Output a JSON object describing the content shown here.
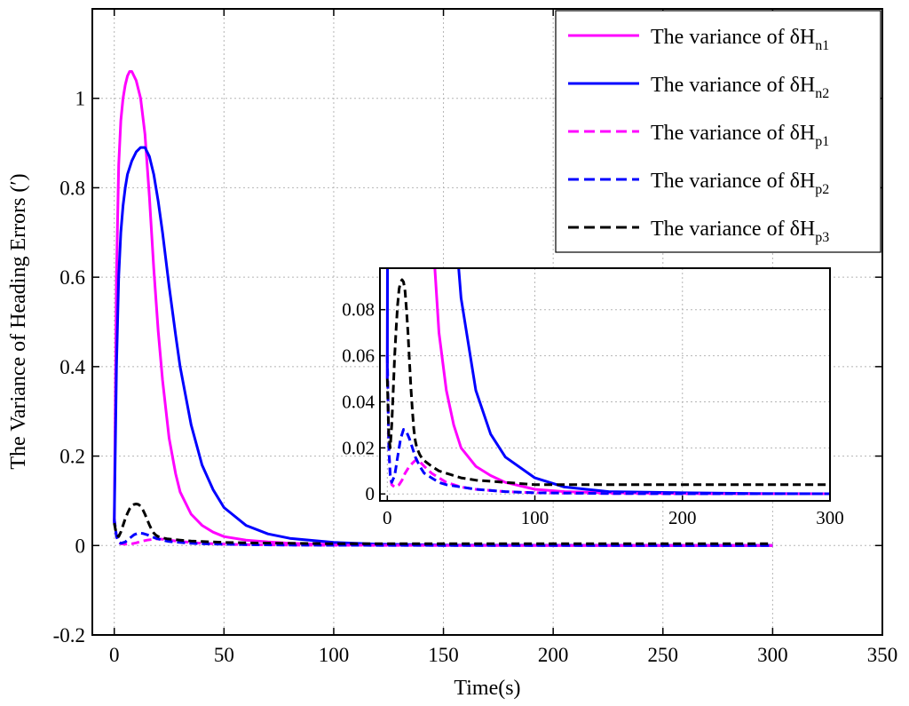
{
  "chart_data": {
    "type": "line",
    "xlabel": "Time(s)",
    "ylabel": "The Variance of Heading Errors (′)",
    "xlim": [
      -10,
      350
    ],
    "ylim": [
      -0.2,
      1.2
    ],
    "xticks": [
      "0",
      "50",
      "100",
      "150",
      "200",
      "250",
      "300",
      "350"
    ],
    "yticks": [
      "-0.2",
      "0",
      "0.2",
      "0.4",
      "0.6",
      "0.8",
      "1"
    ],
    "grid": true,
    "legend_position": "top-right",
    "series": [
      {
        "name": "The variance of δH",
        "subscript": "n1",
        "color": "#ff00ff",
        "dash": "solid",
        "x": [
          0,
          1,
          2,
          3,
          4,
          5,
          6,
          7,
          8,
          10,
          12,
          14,
          16,
          18,
          20,
          22,
          25,
          28,
          30,
          35,
          40,
          45,
          50,
          60,
          70,
          80,
          100,
          120,
          150,
          200,
          250,
          300
        ],
        "y": [
          0.05,
          0.6,
          0.85,
          0.95,
          1.0,
          1.03,
          1.05,
          1.06,
          1.06,
          1.04,
          1.0,
          0.92,
          0.78,
          0.62,
          0.48,
          0.37,
          0.24,
          0.16,
          0.12,
          0.07,
          0.045,
          0.03,
          0.02,
          0.012,
          0.008,
          0.005,
          0.002,
          0.001,
          0.0005,
          0.0002,
          0.0001,
          0.0001
        ]
      },
      {
        "name": "The variance of δH",
        "subscript": "n2",
        "color": "#0000ff",
        "dash": "solid",
        "x": [
          0,
          1,
          2,
          3,
          4,
          5,
          6,
          8,
          10,
          12,
          14,
          16,
          18,
          20,
          22,
          25,
          28,
          30,
          35,
          40,
          45,
          50,
          60,
          70,
          80,
          100,
          120,
          150,
          200,
          250,
          300
        ],
        "y": [
          0.05,
          0.4,
          0.6,
          0.7,
          0.76,
          0.8,
          0.83,
          0.86,
          0.88,
          0.89,
          0.89,
          0.87,
          0.83,
          0.77,
          0.7,
          0.58,
          0.47,
          0.4,
          0.27,
          0.18,
          0.125,
          0.085,
          0.045,
          0.026,
          0.016,
          0.007,
          0.003,
          0.001,
          0.0005,
          0.0002,
          0.0001
        ]
      },
      {
        "name": "The variance of δH",
        "subscript": "p1",
        "color": "#ff00ff",
        "dash": "dashed",
        "x": [
          0,
          1,
          2,
          3,
          5,
          8,
          10,
          12,
          15,
          18,
          20,
          22,
          25,
          30,
          35,
          40,
          50,
          60,
          80,
          100,
          150,
          200,
          250,
          300
        ],
        "y": [
          0.06,
          0.02,
          0.008,
          0.004,
          0.003,
          0.004,
          0.006,
          0.009,
          0.012,
          0.014,
          0.015,
          0.014,
          0.012,
          0.009,
          0.007,
          0.005,
          0.003,
          0.002,
          0.001,
          0.0005,
          0.0002,
          0.0001,
          0.0001,
          0.0001
        ]
      },
      {
        "name": "The variance of δH",
        "subscript": "p2",
        "color": "#0000ff",
        "dash": "dashed",
        "x": [
          0,
          1,
          2,
          3,
          5,
          7,
          9,
          11,
          13,
          15,
          17,
          19,
          22,
          25,
          30,
          35,
          40,
          50,
          60,
          80,
          100,
          150,
          200,
          250,
          300
        ],
        "y": [
          0.06,
          0.02,
          0.008,
          0.005,
          0.008,
          0.016,
          0.024,
          0.028,
          0.027,
          0.024,
          0.02,
          0.016,
          0.012,
          0.009,
          0.007,
          0.005,
          0.004,
          0.003,
          0.002,
          0.001,
          0.0005,
          0.0002,
          0.0001,
          0.0001,
          0.0001
        ]
      },
      {
        "name": "The variance of δH",
        "subscript": "p3",
        "color": "#000000",
        "dash": "dashed",
        "x": [
          0,
          1,
          2,
          3,
          4,
          5,
          6,
          7,
          8,
          9,
          10,
          11,
          12,
          13,
          14,
          15,
          16,
          17,
          18,
          19,
          20,
          22,
          24,
          26,
          30,
          35,
          40,
          50,
          60,
          80,
          100,
          120,
          150,
          200,
          250,
          300
        ],
        "y": [
          0.05,
          0.025,
          0.02,
          0.03,
          0.045,
          0.06,
          0.072,
          0.082,
          0.089,
          0.092,
          0.093,
          0.092,
          0.088,
          0.08,
          0.07,
          0.058,
          0.046,
          0.036,
          0.028,
          0.023,
          0.02,
          0.017,
          0.015,
          0.014,
          0.012,
          0.01,
          0.009,
          0.007,
          0.006,
          0.005,
          0.004,
          0.004,
          0.004,
          0.004,
          0.004,
          0.004
        ]
      }
    ],
    "inset": {
      "xlim": [
        -5,
        300
      ],
      "ylim": [
        -0.003,
        0.098
      ],
      "xticks": [
        "0",
        "100",
        "200",
        "300"
      ],
      "yticks": [
        "0",
        "0.02",
        "0.04",
        "0.06",
        "0.08"
      ],
      "grid": true
    }
  }
}
